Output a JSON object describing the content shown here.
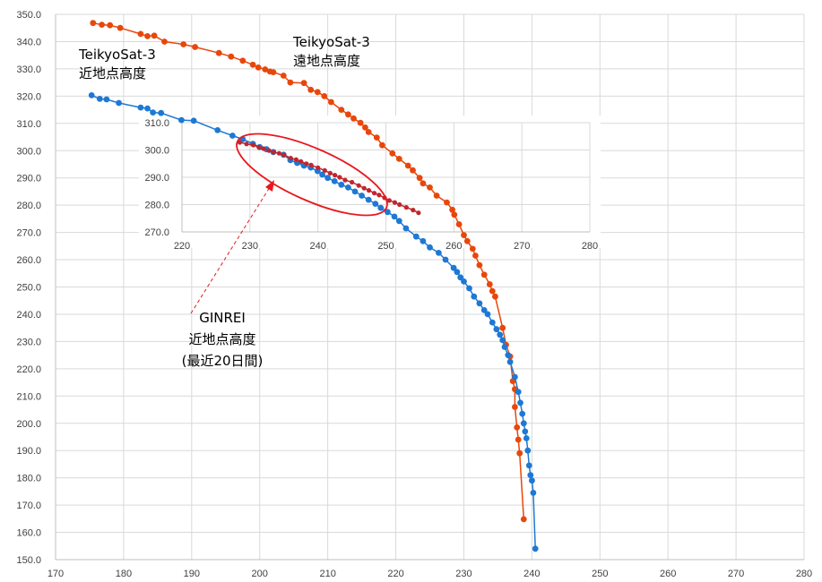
{
  "chart_data": {
    "type": "scatter",
    "main": {
      "xlim": [
        170,
        280
      ],
      "ylim": [
        150,
        350
      ],
      "xticks": [
        170,
        180,
        190,
        200,
        210,
        220,
        230,
        240,
        250,
        260,
        270,
        280
      ],
      "yticks": [
        150,
        160,
        170,
        180,
        190,
        200,
        210,
        220,
        230,
        240,
        250,
        260,
        270,
        280,
        290,
        300,
        310,
        320,
        330,
        340,
        350
      ],
      "grid": true
    },
    "inset": {
      "xlim": [
        220,
        280
      ],
      "ylim": [
        270,
        310
      ],
      "xticks": [
        220,
        230,
        240,
        250,
        260,
        270,
        280
      ],
      "yticks": [
        270,
        280,
        290,
        300,
        310
      ],
      "grid": true
    },
    "series": [
      {
        "id": "teikyo_apogee",
        "color": "#E8470B",
        "points": [
          [
            175.5,
            346.8
          ],
          [
            176.8,
            346.2
          ],
          [
            178.0,
            346.0
          ],
          [
            179.5,
            345.0
          ],
          [
            182.5,
            342.8
          ],
          [
            183.5,
            342.0
          ],
          [
            184.5,
            342.2
          ],
          [
            186.0,
            340.0
          ],
          [
            188.8,
            339.0
          ],
          [
            190.5,
            338.0
          ],
          [
            194.0,
            335.8
          ],
          [
            195.8,
            334.5
          ],
          [
            197.5,
            333.0
          ],
          [
            199.0,
            331.5
          ],
          [
            199.8,
            330.5
          ],
          [
            200.8,
            329.8
          ],
          [
            201.5,
            329.0
          ],
          [
            202.0,
            328.8
          ],
          [
            203.5,
            327.5
          ],
          [
            204.5,
            325.0
          ],
          [
            206.5,
            324.8
          ],
          [
            207.5,
            322.3
          ],
          [
            208.5,
            321.5
          ],
          [
            209.5,
            320.0
          ],
          [
            210.5,
            317.8
          ],
          [
            212.0,
            315.0
          ],
          [
            213.0,
            313.3
          ],
          [
            213.8,
            311.8
          ],
          [
            214.8,
            310.2
          ],
          [
            215.5,
            308.5
          ],
          [
            216.0,
            306.8
          ],
          [
            217.2,
            304.8
          ],
          [
            218.0,
            302.0
          ],
          [
            219.5,
            299.0
          ],
          [
            220.5,
            297.0
          ],
          [
            221.8,
            294.5
          ],
          [
            222.5,
            292.8
          ],
          [
            223.5,
            290.0
          ],
          [
            224.0,
            288.0
          ],
          [
            225.0,
            286.5
          ],
          [
            226.0,
            283.5
          ],
          [
            227.5,
            281.0
          ],
          [
            228.3,
            278.3
          ],
          [
            228.6,
            276.5
          ],
          [
            229.3,
            273.0
          ],
          [
            230.0,
            269.0
          ],
          [
            230.5,
            266.8
          ],
          [
            231.3,
            264.0
          ],
          [
            231.7,
            261.5
          ],
          [
            232.3,
            258.0
          ],
          [
            233.0,
            254.5
          ],
          [
            233.8,
            251.0
          ],
          [
            234.2,
            248.5
          ],
          [
            234.6,
            246.5
          ],
          [
            235.7,
            235.0
          ],
          [
            236.2,
            228.8
          ],
          [
            236.8,
            224.5
          ],
          [
            237.2,
            215.5
          ],
          [
            237.5,
            212.5
          ],
          [
            237.5,
            206.0
          ],
          [
            237.8,
            198.5
          ],
          [
            238.0,
            194.0
          ],
          [
            238.2,
            189.0
          ],
          [
            238.8,
            164.8
          ]
        ]
      },
      {
        "id": "teikyo_perigee",
        "color": "#1E78D4",
        "points": [
          [
            175.3,
            320.3
          ],
          [
            176.5,
            319.0
          ],
          [
            177.5,
            318.8
          ],
          [
            179.3,
            317.5
          ],
          [
            182.5,
            315.8
          ],
          [
            183.5,
            315.5
          ],
          [
            184.3,
            314.0
          ],
          [
            185.5,
            313.8
          ],
          [
            188.5,
            311.2
          ],
          [
            190.3,
            311.0
          ],
          [
            193.8,
            307.5
          ],
          [
            196.0,
            305.5
          ],
          [
            197.5,
            304.2
          ],
          [
            199.0,
            302.5
          ],
          [
            200.0,
            301.3
          ],
          [
            201.0,
            300.5
          ],
          [
            202.0,
            299.5
          ],
          [
            203.5,
            298.5
          ],
          [
            204.5,
            296.5
          ],
          [
            205.5,
            295.5
          ],
          [
            206.5,
            294.5
          ],
          [
            207.5,
            293.8
          ],
          [
            208.5,
            292.5
          ],
          [
            209.2,
            291.2
          ],
          [
            210.0,
            290.0
          ],
          [
            211.0,
            288.8
          ],
          [
            212.0,
            287.5
          ],
          [
            213.0,
            286.5
          ],
          [
            214.0,
            285.0
          ],
          [
            215.0,
            283.5
          ],
          [
            216.0,
            282.0
          ],
          [
            217.0,
            280.5
          ],
          [
            217.8,
            279.0
          ],
          [
            218.8,
            277.5
          ],
          [
            219.8,
            275.8
          ],
          [
            220.5,
            274.2
          ],
          [
            221.5,
            271.5
          ],
          [
            223.0,
            268.5
          ],
          [
            224.0,
            266.8
          ],
          [
            225.0,
            264.5
          ],
          [
            226.3,
            262.5
          ],
          [
            227.3,
            260.0
          ],
          [
            228.5,
            257.0
          ],
          [
            229.0,
            255.5
          ],
          [
            229.5,
            253.5
          ],
          [
            230.0,
            252.0
          ],
          [
            230.8,
            249.5
          ],
          [
            231.5,
            246.5
          ],
          [
            232.3,
            244.0
          ],
          [
            233.0,
            241.5
          ],
          [
            233.5,
            240.0
          ],
          [
            234.2,
            237.0
          ],
          [
            234.8,
            234.5
          ],
          [
            235.3,
            232.5
          ],
          [
            235.7,
            230.5
          ],
          [
            236.0,
            228.0
          ],
          [
            236.5,
            225.0
          ],
          [
            236.8,
            222.5
          ],
          [
            237.5,
            217.0
          ],
          [
            238.0,
            211.5
          ],
          [
            238.3,
            207.5
          ],
          [
            238.6,
            203.5
          ],
          [
            238.8,
            200.0
          ],
          [
            239.0,
            197.0
          ],
          [
            239.2,
            194.5
          ],
          [
            239.4,
            190.0
          ],
          [
            239.6,
            184.5
          ],
          [
            239.8,
            181.0
          ],
          [
            240.0,
            179.0
          ],
          [
            240.2,
            174.5
          ],
          [
            240.5,
            154.0
          ]
        ]
      },
      {
        "id": "ginrei_perigee",
        "color": "#C0272D",
        "points": [
          [
            228.5,
            302.8
          ],
          [
            229.5,
            302.2
          ],
          [
            230.5,
            301.8
          ],
          [
            231.3,
            301.0
          ],
          [
            232.0,
            300.5
          ],
          [
            232.8,
            299.8
          ],
          [
            233.5,
            299.2
          ],
          [
            234.3,
            298.8
          ],
          [
            235.0,
            298.2
          ],
          [
            236.0,
            297.0
          ],
          [
            236.8,
            296.5
          ],
          [
            237.5,
            295.8
          ],
          [
            238.3,
            295.0
          ],
          [
            239.0,
            294.5
          ],
          [
            240.0,
            293.5
          ],
          [
            241.0,
            292.5
          ],
          [
            241.8,
            291.5
          ],
          [
            242.5,
            290.8
          ],
          [
            243.2,
            290.0
          ],
          [
            244.0,
            289.0
          ],
          [
            245.0,
            288.2
          ],
          [
            246.0,
            287.0
          ],
          [
            246.8,
            286.0
          ],
          [
            247.5,
            285.2
          ],
          [
            248.3,
            284.2
          ],
          [
            249.0,
            283.5
          ],
          [
            249.8,
            282.5
          ],
          [
            250.5,
            281.5
          ],
          [
            251.3,
            280.8
          ],
          [
            252.0,
            280.0
          ],
          [
            253.0,
            279.0
          ],
          [
            254.0,
            278.0
          ],
          [
            254.8,
            277.0
          ]
        ]
      }
    ],
    "annotations": {
      "apogee_line1": "TeikyoSat-3",
      "apogee_line2": "遠地点高度",
      "perigee_line1": "TeikyoSat-3",
      "perigee_line2": "近地点高度",
      "ginrei_line1": "GINREI",
      "ginrei_line2": "近地点高度",
      "ginrei_line3": "(最近20日間)"
    }
  }
}
